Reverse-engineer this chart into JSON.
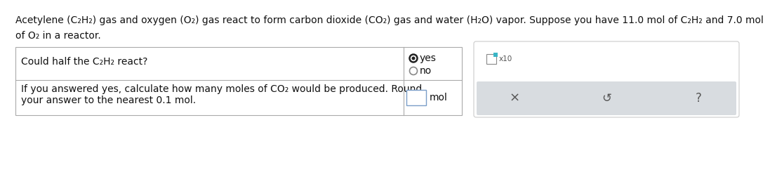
{
  "bg_color": "#ffffff",
  "text_color": "#111111",
  "title_line1": "Acetylene (C₂H₂) gas and oxygen (O₂) gas react to form carbon dioxide (CO₂) gas and water (H₂O) vapor. Suppose you have 11.0 mol of C₂H₂ and 7.0 mol",
  "title_line2": "of O₂ in a reactor.",
  "question1": "Could half the C₂H₂ react?",
  "radio_yes": "yes",
  "radio_no": "no",
  "question2_line1": "If you answered yes, calculate how many moles of CO₂ would be produced. Round",
  "question2_line2": "your answer to the nearest 0.1 mol.",
  "unit": "mol",
  "font_size": 10.0,
  "small_font_size": 7.5,
  "text_color_gray": "#555555",
  "border_color": "#aaaaaa",
  "panel_border_color": "#cccccc",
  "gray_bar_color": "#d8dce0",
  "radio_yes_color": "#222222",
  "radio_no_color": "#888888",
  "input_border_color": "#7a9ec8",
  "blue_sq_color": "#3ab5c6"
}
